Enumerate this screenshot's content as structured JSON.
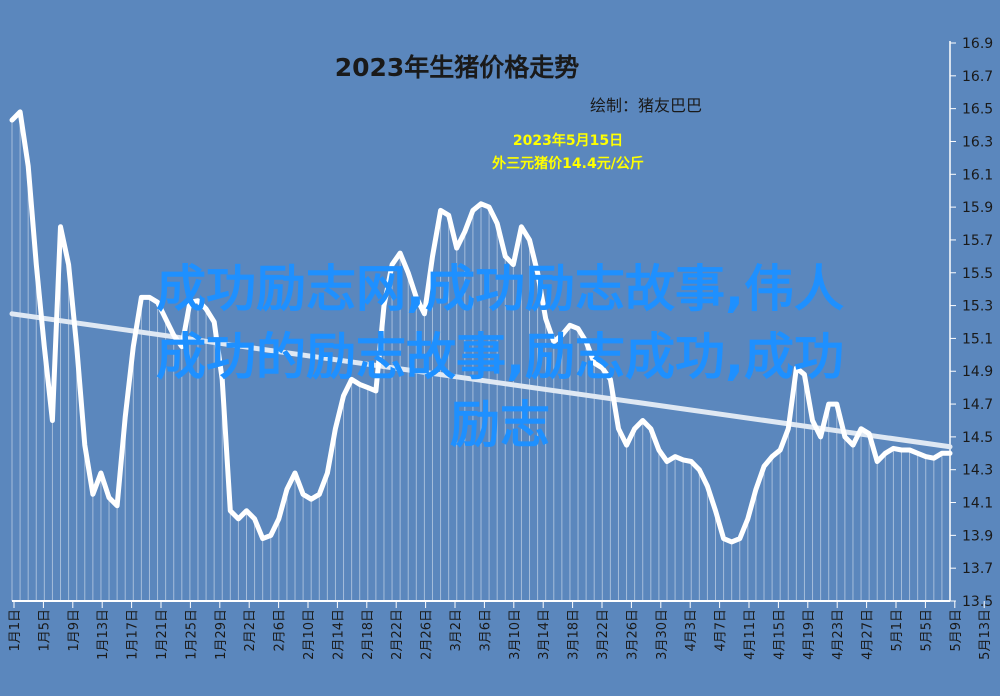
{
  "chart_data": {
    "type": "line",
    "title": "2023年生猪价格走势",
    "subtitle": "绘制：猪友巴巴",
    "annotation": {
      "date": "2023年5月15日",
      "text": "外三元猪价14.4元/公斤",
      "color": "#ffff00"
    },
    "ylim": [
      13.5,
      16.9
    ],
    "yticks": [
      "16.9",
      "16.7",
      "16.5",
      "16.3",
      "16.1",
      "15.9",
      "15.7",
      "15.5",
      "15.3",
      "15.1",
      "14.9",
      "14.7",
      "14.5",
      "14.3",
      "14.1",
      "13.9",
      "13.7",
      "13.5"
    ],
    "xticks": [
      "1月1日",
      "1月5日",
      "1月9日",
      "1月13日",
      "1月17日",
      "1月21日",
      "1月25日",
      "1月29日",
      "2月2日",
      "2月6日",
      "2月10日",
      "2月14日",
      "2月18日",
      "2月22日",
      "2月26日",
      "3月2日",
      "3月6日",
      "3月10日",
      "3月14日",
      "3月18日",
      "3月22日",
      "3月26日",
      "3月30日",
      "4月3日",
      "4月7日",
      "4月11日",
      "4月15日",
      "4月19日",
      "4月23日",
      "4月27日",
      "5月1日",
      "5月5日",
      "5月9日",
      "5月13日"
    ],
    "series": [
      {
        "values": [
          16.43,
          16.48,
          16.15,
          15.55,
          15.05,
          14.6,
          15.78,
          15.55,
          15.05,
          14.45,
          14.15,
          14.28,
          14.13,
          14.08,
          14.62,
          15.05,
          15.35,
          15.35,
          15.32,
          15.22,
          15.12,
          15.05,
          15.32,
          15.33,
          15.28,
          15.2,
          14.85,
          14.05,
          14.0,
          14.05,
          14.0,
          13.88,
          13.9,
          14.0,
          14.18,
          14.28,
          14.15,
          14.12,
          14.15,
          14.28,
          14.55,
          14.75,
          14.85,
          14.82,
          14.8,
          14.78,
          15.3,
          15.55,
          15.62,
          15.5,
          15.35,
          15.25,
          15.6,
          15.88,
          15.85,
          15.65,
          15.75,
          15.88,
          15.92,
          15.9,
          15.8,
          15.6,
          15.55,
          15.78,
          15.7,
          15.5,
          15.22,
          15.08,
          15.12,
          15.18,
          15.16,
          15.08,
          14.95,
          14.92,
          14.85,
          14.55,
          14.45,
          14.55,
          14.6,
          14.55,
          14.42,
          14.35,
          14.38,
          14.36,
          14.35,
          14.3,
          14.2,
          14.05,
          13.88,
          13.86,
          13.88,
          14.0,
          14.18,
          14.32,
          14.38,
          14.42,
          14.55,
          14.92,
          14.88,
          14.6,
          14.5,
          14.7,
          14.7,
          14.5,
          14.45,
          14.55,
          14.52,
          14.35,
          14.4,
          14.43,
          14.42,
          14.42,
          14.4,
          14.38,
          14.37,
          14.4,
          14.4
        ]
      }
    ],
    "trendline": {
      "start": 15.25,
      "end": 14.44
    },
    "grid": false
  },
  "overlay": {
    "lines": [
      "成功励志网,成功励志故事,伟人",
      "成功的励志故事,励志成功,成功",
      "励志"
    ]
  },
  "colors": {
    "background": "#5b87bd",
    "line": "#ffffff",
    "text": "#1a1a1a",
    "overlay": "#1e90ff"
  }
}
